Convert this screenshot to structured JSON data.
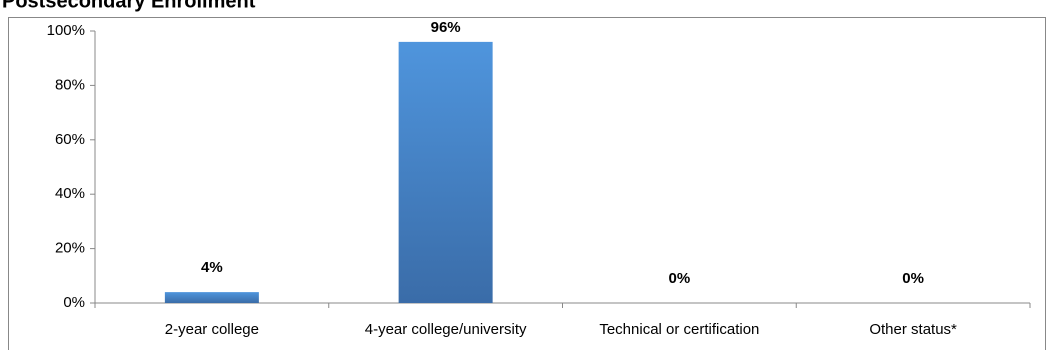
{
  "chart_data": {
    "type": "bar",
    "title": "Postsecondary Enrollment",
    "categories": [
      "2-year college",
      "4-year college/university",
      "Technical or certification",
      "Other status*"
    ],
    "values": [
      4,
      96,
      0,
      0
    ],
    "value_labels": [
      "4%",
      "96%",
      "0%",
      "0%"
    ],
    "color": "#4a8fd6",
    "ylim": [
      0,
      100
    ],
    "yticks": [
      {
        "value": 0,
        "label": "0%"
      },
      {
        "value": 20,
        "label": "20%"
      },
      {
        "value": 40,
        "label": "40%"
      },
      {
        "value": 60,
        "label": "60%"
      },
      {
        "value": 80,
        "label": "80%"
      },
      {
        "value": 100,
        "label": "100%"
      }
    ],
    "grid": false
  }
}
